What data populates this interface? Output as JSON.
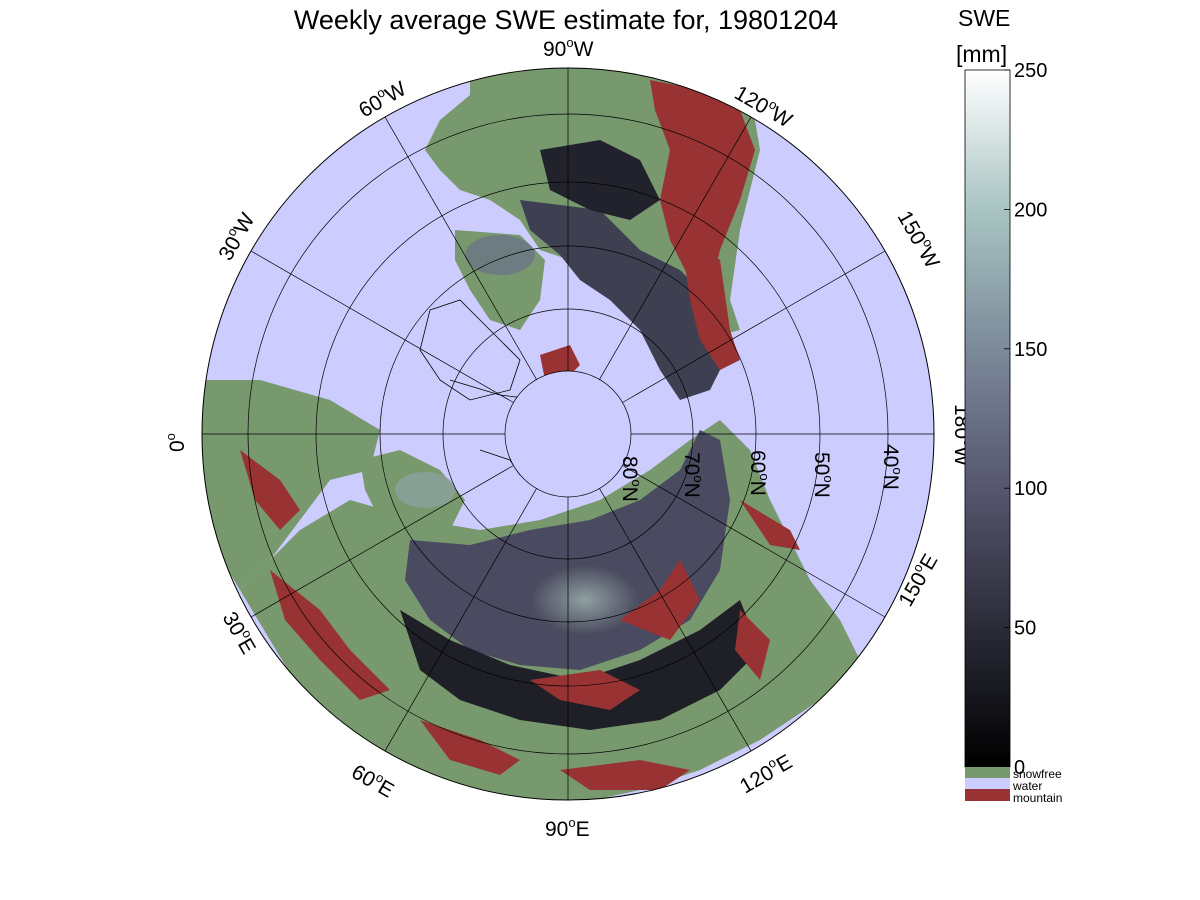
{
  "title": "Weekly average SWE estimate for, 19801204",
  "colorbar": {
    "title_line1": "SWE",
    "title_line2": "[mm]",
    "ticks": [
      "0",
      "50",
      "100",
      "150",
      "200",
      "250"
    ],
    "range": [
      0,
      250
    ],
    "categories": [
      {
        "label": "snowfree",
        "color": "#78996e"
      },
      {
        "label": "water",
        "color": "#ccccff"
      },
      {
        "label": "mountain",
        "color": "#993333"
      }
    ]
  },
  "map": {
    "projection": "north polar stereographic",
    "longitude_labels": [
      {
        "num": "90",
        "deg": "o",
        "dir": "W"
      },
      {
        "num": "120",
        "deg": "o",
        "dir": "W"
      },
      {
        "num": "150",
        "deg": "o",
        "dir": "W"
      },
      {
        "num": "180",
        "deg": "o",
        "dir": "W"
      },
      {
        "num": "150",
        "deg": "o",
        "dir": "E"
      },
      {
        "num": "120",
        "deg": "o",
        "dir": "E"
      },
      {
        "num": "90",
        "deg": "o",
        "dir": "E"
      },
      {
        "num": "60",
        "deg": "o",
        "dir": "E"
      },
      {
        "num": "30",
        "deg": "o",
        "dir": "E"
      },
      {
        "num": "0",
        "deg": "o",
        "dir": ""
      },
      {
        "num": "30",
        "deg": "o",
        "dir": "W"
      },
      {
        "num": "60",
        "deg": "o",
        "dir": "W"
      }
    ],
    "latitude_labels": [
      {
        "num": "80",
        "deg": "o",
        "dir": "N"
      },
      {
        "num": "70",
        "deg": "o",
        "dir": "N"
      },
      {
        "num": "60",
        "deg": "o",
        "dir": "N"
      },
      {
        "num": "50",
        "deg": "o",
        "dir": "N"
      },
      {
        "num": "40",
        "deg": "o",
        "dir": "N"
      }
    ],
    "colors": {
      "water": "#ccccff",
      "snowfree": "#78996e",
      "mountain": "#993333",
      "swe_low": "#1a1a22",
      "swe_mid": "#4a4a60",
      "swe_high": "#9cb8b4"
    }
  }
}
